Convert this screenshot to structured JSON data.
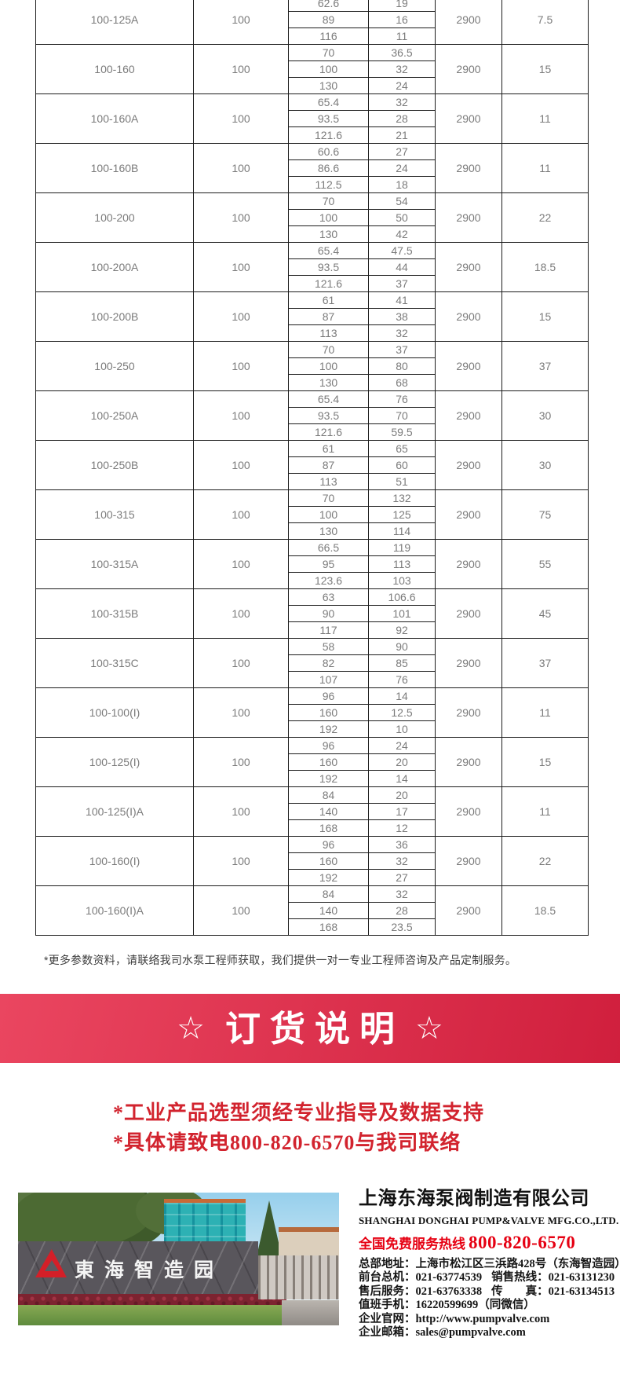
{
  "colors": {
    "banner_from": "#ea4660",
    "banner_to": "#d01f3d",
    "advisory_red": "#d2232e",
    "hotline_red": "#e60012",
    "table_text": "#7b7b7b",
    "logo_red": "#d41f28"
  },
  "table": {
    "rows": [
      {
        "model": "100-125A",
        "dn": "100",
        "points": [
          [
            "62.6",
            "19"
          ],
          [
            "89",
            "16"
          ],
          [
            "116",
            "11"
          ]
        ],
        "speed": "2900",
        "power": "7.5"
      },
      {
        "model": "100-160",
        "dn": "100",
        "points": [
          [
            "70",
            "36.5"
          ],
          [
            "100",
            "32"
          ],
          [
            "130",
            "24"
          ]
        ],
        "speed": "2900",
        "power": "15"
      },
      {
        "model": "100-160A",
        "dn": "100",
        "points": [
          [
            "65.4",
            "32"
          ],
          [
            "93.5",
            "28"
          ],
          [
            "121.6",
            "21"
          ]
        ],
        "speed": "2900",
        "power": "11"
      },
      {
        "model": "100-160B",
        "dn": "100",
        "points": [
          [
            "60.6",
            "27"
          ],
          [
            "86.6",
            "24"
          ],
          [
            "112.5",
            "18"
          ]
        ],
        "speed": "2900",
        "power": "11"
      },
      {
        "model": "100-200",
        "dn": "100",
        "points": [
          [
            "70",
            "54"
          ],
          [
            "100",
            "50"
          ],
          [
            "130",
            "42"
          ]
        ],
        "speed": "2900",
        "power": "22"
      },
      {
        "model": "100-200A",
        "dn": "100",
        "points": [
          [
            "65.4",
            "47.5"
          ],
          [
            "93.5",
            "44"
          ],
          [
            "121.6",
            "37"
          ]
        ],
        "speed": "2900",
        "power": "18.5"
      },
      {
        "model": "100-200B",
        "dn": "100",
        "points": [
          [
            "61",
            "41"
          ],
          [
            "87",
            "38"
          ],
          [
            "113",
            "32"
          ]
        ],
        "speed": "2900",
        "power": "15"
      },
      {
        "model": "100-250",
        "dn": "100",
        "points": [
          [
            "70",
            "37"
          ],
          [
            "100",
            "80"
          ],
          [
            "130",
            "68"
          ]
        ],
        "speed": "2900",
        "power": "37"
      },
      {
        "model": "100-250A",
        "dn": "100",
        "points": [
          [
            "65.4",
            "76"
          ],
          [
            "93.5",
            "70"
          ],
          [
            "121.6",
            "59.5"
          ]
        ],
        "speed": "2900",
        "power": "30"
      },
      {
        "model": "100-250B",
        "dn": "100",
        "points": [
          [
            "61",
            "65"
          ],
          [
            "87",
            "60"
          ],
          [
            "113",
            "51"
          ]
        ],
        "speed": "2900",
        "power": "30"
      },
      {
        "model": "100-315",
        "dn": "100",
        "points": [
          [
            "70",
            "132"
          ],
          [
            "100",
            "125"
          ],
          [
            "130",
            "114"
          ]
        ],
        "speed": "2900",
        "power": "75"
      },
      {
        "model": "100-315A",
        "dn": "100",
        "points": [
          [
            "66.5",
            "119"
          ],
          [
            "95",
            "113"
          ],
          [
            "123.6",
            "103"
          ]
        ],
        "speed": "2900",
        "power": "55"
      },
      {
        "model": "100-315B",
        "dn": "100",
        "points": [
          [
            "63",
            "106.6"
          ],
          [
            "90",
            "101"
          ],
          [
            "117",
            "92"
          ]
        ],
        "speed": "2900",
        "power": "45"
      },
      {
        "model": "100-315C",
        "dn": "100",
        "points": [
          [
            "58",
            "90"
          ],
          [
            "82",
            "85"
          ],
          [
            "107",
            "76"
          ]
        ],
        "speed": "2900",
        "power": "37"
      },
      {
        "model": "100-100(I)",
        "dn": "100",
        "points": [
          [
            "96",
            "14"
          ],
          [
            "160",
            "12.5"
          ],
          [
            "192",
            "10"
          ]
        ],
        "speed": "2900",
        "power": "11"
      },
      {
        "model": "100-125(I)",
        "dn": "100",
        "points": [
          [
            "96",
            "24"
          ],
          [
            "160",
            "20"
          ],
          [
            "192",
            "14"
          ]
        ],
        "speed": "2900",
        "power": "15"
      },
      {
        "model": "100-125(I)A",
        "dn": "100",
        "points": [
          [
            "84",
            "20"
          ],
          [
            "140",
            "17"
          ],
          [
            "168",
            "12"
          ]
        ],
        "speed": "2900",
        "power": "11"
      },
      {
        "model": "100-160(I)",
        "dn": "100",
        "points": [
          [
            "96",
            "36"
          ],
          [
            "160",
            "32"
          ],
          [
            "192",
            "27"
          ]
        ],
        "speed": "2900",
        "power": "22"
      },
      {
        "model": "100-160(I)A",
        "dn": "100",
        "points": [
          [
            "84",
            "32"
          ],
          [
            "140",
            "28"
          ],
          [
            "168",
            "23.5"
          ]
        ],
        "speed": "2900",
        "power": "18.5"
      }
    ]
  },
  "note": "*更多参数资料，请联络我司水泵工程师获取，我们提供一对一专业工程师咨询及产品定制服务。",
  "banner": {
    "star_left": "☆",
    "title": "订货说明",
    "star_right": "☆"
  },
  "advisory": {
    "line1": "*工业产品选型须经专业指导及数据支持",
    "line2": "*具体请致电800-820-6570与我司联络"
  },
  "footer": {
    "photo_caption": "東海智造园",
    "company_cn": "上海东海泵阀制造有限公司",
    "company_en": "SHANGHAI DONGHAI PUMP&VALVE MFG.CO.,LTD.",
    "hotline_label": "全国免费服务热线",
    "hotline_number": "800-820-6570",
    "info_lines": [
      [
        {
          "label": "总部地址：",
          "value": "上海市松江区三浜路428号（东海智造园）"
        }
      ],
      [
        {
          "label": "前台总机：",
          "value": "021-63774539"
        },
        {
          "label": "销售热线：",
          "value": "021-63131230"
        }
      ],
      [
        {
          "label": "售后服务：",
          "value": "021-63763338"
        },
        {
          "label": "传　　真：",
          "value": "021-63134513"
        }
      ],
      [
        {
          "label": "值班手机：",
          "value": "16220599699（同微信）"
        }
      ],
      [
        {
          "label": "企业官网：",
          "value": "http://www.pumpvalve.com"
        }
      ],
      [
        {
          "label": "企业邮箱：",
          "value": "sales@pumpvalve.com"
        }
      ]
    ]
  }
}
